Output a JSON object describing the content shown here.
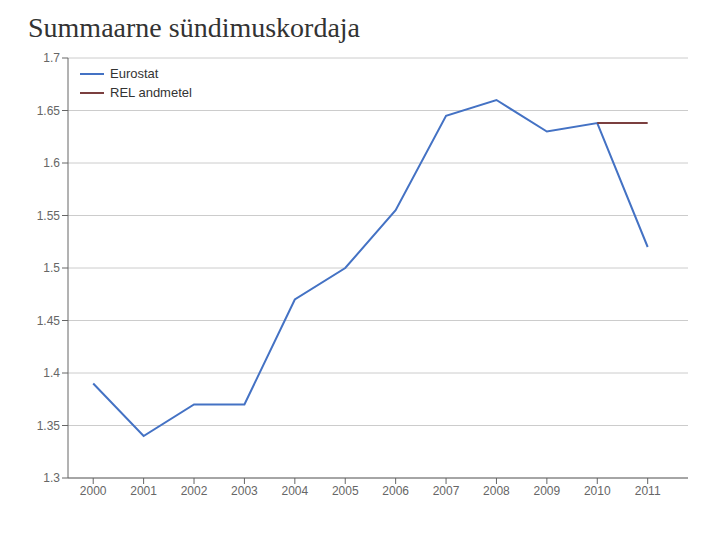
{
  "chart_data": {
    "type": "line",
    "title": "Summaarne sündimuskordaja",
    "x": [
      2000,
      2001,
      2002,
      2003,
      2004,
      2005,
      2006,
      2007,
      2008,
      2009,
      2010,
      2011
    ],
    "series": [
      {
        "name": "Eurostat",
        "color": "#4472C4",
        "values": [
          1.39,
          1.34,
          1.37,
          1.37,
          1.47,
          1.5,
          1.555,
          1.645,
          1.66,
          1.63,
          1.638,
          1.52
        ]
      },
      {
        "name": "REL andmetel",
        "color": "#7B3F3F",
        "values": [
          null,
          null,
          null,
          null,
          null,
          null,
          null,
          null,
          null,
          null,
          1.638,
          1.638
        ]
      }
    ],
    "xlim": [
      1999.5,
      2011.8
    ],
    "xticks": [
      2000,
      2001,
      2002,
      2003,
      2004,
      2005,
      2006,
      2007,
      2008,
      2009,
      2010,
      2011
    ],
    "ylim": [
      1.3,
      1.7
    ],
    "yticks": [
      1.3,
      1.35,
      1.4,
      1.45,
      1.5,
      1.55,
      1.6,
      1.65,
      1.7
    ],
    "grid": true,
    "legend": "upper left"
  }
}
